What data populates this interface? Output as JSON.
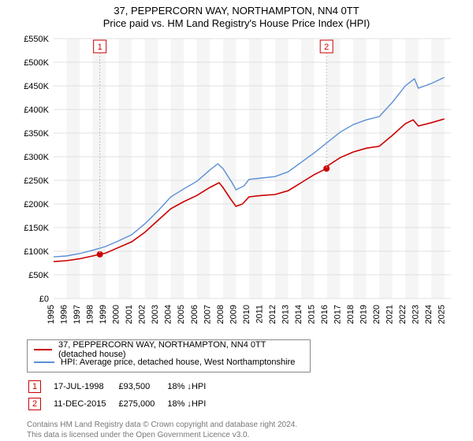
{
  "title": "37, PEPPERCORN WAY, NORTHAMPTON, NN4 0TT",
  "subtitle": "Price paid vs. HM Land Registry's House Price Index (HPI)",
  "chart": {
    "type": "line",
    "background_color": "#ffffff",
    "plot_band_color": "#f5f5f5",
    "grid_color": "#e0e0e0",
    "axis_text_color": "#000000",
    "label_fontsize": 11,
    "x": {
      "min": 1995,
      "max": 2025.5,
      "ticks": [
        1995,
        1996,
        1997,
        1998,
        1999,
        2000,
        2001,
        2002,
        2003,
        2004,
        2005,
        2006,
        2007,
        2008,
        2009,
        2010,
        2011,
        2012,
        2013,
        2014,
        2015,
        2016,
        2017,
        2018,
        2019,
        2020,
        2021,
        2022,
        2023,
        2024,
        2025
      ]
    },
    "y": {
      "min": 0,
      "max": 550000,
      "ticks": [
        0,
        50000,
        100000,
        150000,
        200000,
        250000,
        300000,
        350000,
        400000,
        450000,
        500000,
        550000
      ],
      "tick_labels": [
        "£0",
        "£50K",
        "£100K",
        "£150K",
        "£200K",
        "£250K",
        "£300K",
        "£350K",
        "£400K",
        "£450K",
        "£500K",
        "£550K"
      ]
    },
    "series": [
      {
        "name": "37, PEPPERCORN WAY, NORTHAMPTON, NN4 0TT (detached house)",
        "color": "#cc0000",
        "line_width": 1.6,
        "data": [
          [
            1995,
            78000
          ],
          [
            1996,
            80000
          ],
          [
            1997,
            84000
          ],
          [
            1998,
            90000
          ],
          [
            1998.55,
            93500
          ],
          [
            1999,
            96000
          ],
          [
            2000,
            108000
          ],
          [
            2001,
            120000
          ],
          [
            2002,
            140000
          ],
          [
            2003,
            165000
          ],
          [
            2004,
            190000
          ],
          [
            2005,
            205000
          ],
          [
            2006,
            218000
          ],
          [
            2007,
            235000
          ],
          [
            2007.7,
            245000
          ],
          [
            2008,
            235000
          ],
          [
            2008.6,
            210000
          ],
          [
            2009,
            195000
          ],
          [
            2009.5,
            200000
          ],
          [
            2010,
            215000
          ],
          [
            2011,
            218000
          ],
          [
            2012,
            220000
          ],
          [
            2013,
            228000
          ],
          [
            2014,
            245000
          ],
          [
            2015,
            262000
          ],
          [
            2015.95,
            275000
          ],
          [
            2016,
            280000
          ],
          [
            2017,
            298000
          ],
          [
            2018,
            310000
          ],
          [
            2019,
            318000
          ],
          [
            2020,
            322000
          ],
          [
            2021,
            345000
          ],
          [
            2022,
            370000
          ],
          [
            2022.6,
            378000
          ],
          [
            2023,
            365000
          ],
          [
            2024,
            372000
          ],
          [
            2025,
            380000
          ]
        ]
      },
      {
        "name": "HPI: Average price, detached house, West Northamptonshire",
        "color": "#5b8fd6",
        "line_width": 1.4,
        "data": [
          [
            1995,
            88000
          ],
          [
            1996,
            90000
          ],
          [
            1997,
            95000
          ],
          [
            1998,
            102000
          ],
          [
            1999,
            110000
          ],
          [
            2000,
            122000
          ],
          [
            2001,
            135000
          ],
          [
            2002,
            158000
          ],
          [
            2003,
            185000
          ],
          [
            2004,
            215000
          ],
          [
            2005,
            232000
          ],
          [
            2006,
            248000
          ],
          [
            2007,
            272000
          ],
          [
            2007.6,
            285000
          ],
          [
            2008,
            275000
          ],
          [
            2008.7,
            245000
          ],
          [
            2009,
            230000
          ],
          [
            2009.6,
            238000
          ],
          [
            2010,
            252000
          ],
          [
            2011,
            255000
          ],
          [
            2012,
            258000
          ],
          [
            2013,
            268000
          ],
          [
            2014,
            288000
          ],
          [
            2015,
            308000
          ],
          [
            2016,
            330000
          ],
          [
            2017,
            352000
          ],
          [
            2018,
            368000
          ],
          [
            2019,
            378000
          ],
          [
            2020,
            385000
          ],
          [
            2021,
            415000
          ],
          [
            2022,
            450000
          ],
          [
            2022.7,
            465000
          ],
          [
            2023,
            445000
          ],
          [
            2024,
            455000
          ],
          [
            2025,
            468000
          ]
        ]
      }
    ],
    "markers": [
      {
        "id": "1",
        "x": 1998.55,
        "y": 93500,
        "color": "#cc0000"
      },
      {
        "id": "2",
        "x": 2015.95,
        "y": 275000,
        "color": "#cc0000"
      }
    ]
  },
  "legend": {
    "items": [
      {
        "color": "#cc0000",
        "label": "37, PEPPERCORN WAY, NORTHAMPTON, NN4 0TT (detached house)"
      },
      {
        "color": "#5b8fd6",
        "label": "HPI: Average price, detached house, West Northamptonshire"
      }
    ]
  },
  "markers_table": [
    {
      "id": "1",
      "color": "#cc0000",
      "date": "17-JUL-1998",
      "price": "£93,500",
      "delta": "18%",
      "delta_dir": "down",
      "vs": "HPI"
    },
    {
      "id": "2",
      "color": "#cc0000",
      "date": "11-DEC-2015",
      "price": "£275,000",
      "delta": "18%",
      "delta_dir": "down",
      "vs": "HPI"
    }
  ],
  "footer_line1": "Contains HM Land Registry data © Crown copyright and database right 2024.",
  "footer_line2": "This data is licensed under the Open Government Licence v3.0."
}
